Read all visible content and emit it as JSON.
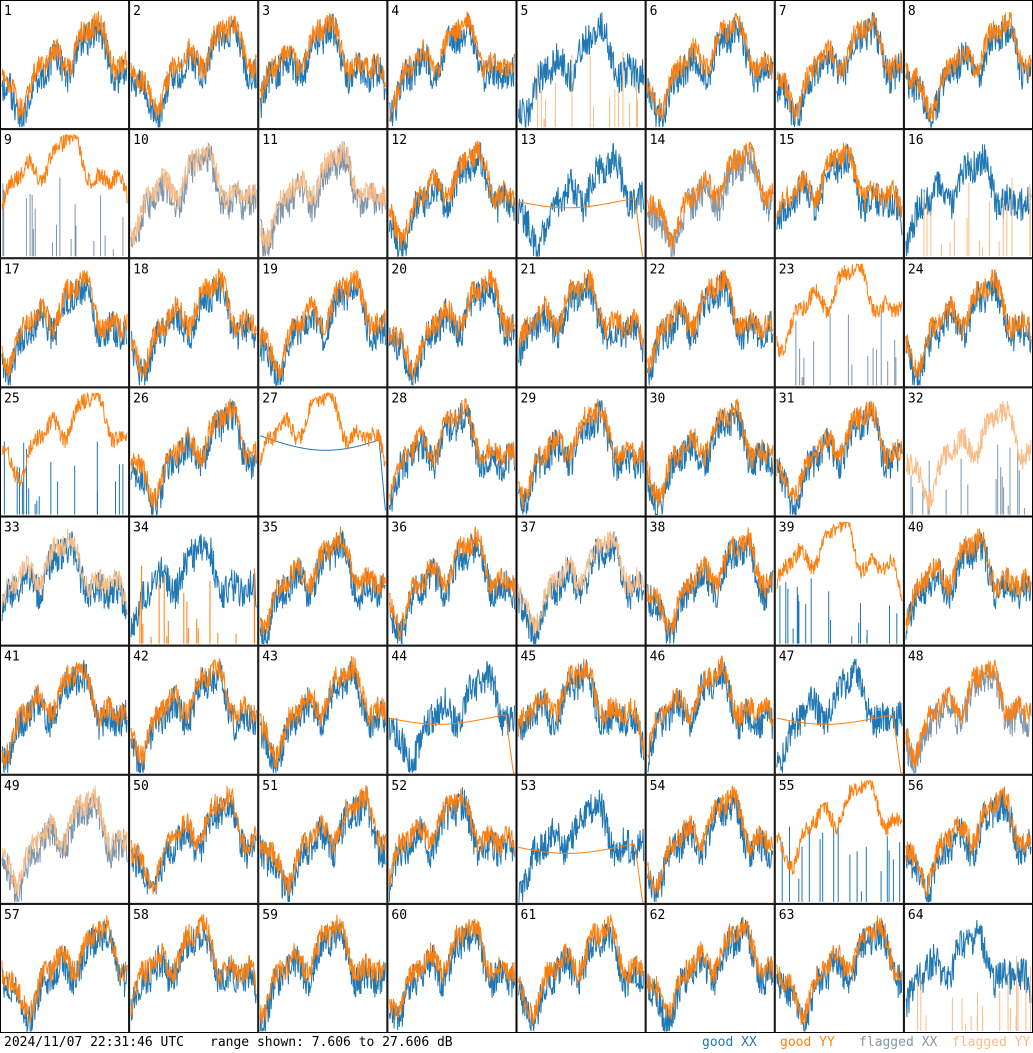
{
  "timestamp": "2024/11/07 22:31:46 UTC",
  "range_text": "range shown: 7.606 to 27.606 dB",
  "legend": {
    "good_xx": "good XX",
    "good_yy": "good YY",
    "flagged_xx": "flagged XX",
    "flagged_yy": "flagged YY"
  },
  "colors": {
    "good_xx": "#1f77b4",
    "good_yy": "#ff7f0e",
    "flagged_xx": "#7f97ad",
    "flagged_yy": "#f9bc86"
  },
  "chart_data": {
    "type": "line",
    "title": "",
    "ylim": [
      7.606,
      27.606
    ],
    "yunit": "dB",
    "grid": "8x8 small multiples",
    "panels": [
      {
        "label": "1",
        "xx": "good",
        "yy": "good",
        "yshape": "normal"
      },
      {
        "label": "2",
        "xx": "good",
        "yy": "good",
        "yshape": "normal"
      },
      {
        "label": "3",
        "xx": "good",
        "yy": "good",
        "yshape": "normal"
      },
      {
        "label": "4",
        "xx": "good",
        "yy": "good",
        "yshape": "normal"
      },
      {
        "label": "5",
        "xx": "good",
        "yy": "flagged",
        "yshape": "spikes"
      },
      {
        "label": "6",
        "xx": "good",
        "yy": "good",
        "yshape": "normal"
      },
      {
        "label": "7",
        "xx": "good",
        "yy": "good",
        "yshape": "normal"
      },
      {
        "label": "8",
        "xx": "good",
        "yy": "good",
        "yshape": "normal"
      },
      {
        "label": "9",
        "xx": "flagged",
        "yy": "good",
        "xshape": "spikes",
        "yshape": "high"
      },
      {
        "label": "10",
        "xx": "flagged",
        "yy": "flagged",
        "yshape": "normal"
      },
      {
        "label": "11",
        "xx": "flagged",
        "yy": "flagged",
        "yshape": "normal"
      },
      {
        "label": "12",
        "xx": "good",
        "yy": "good",
        "yshape": "normal"
      },
      {
        "label": "13",
        "xx": "good",
        "yy": "good",
        "yshape": "smooth"
      },
      {
        "label": "14",
        "xx": "flagged",
        "yy": "good",
        "yshape": "normal"
      },
      {
        "label": "15",
        "xx": "good",
        "yy": "good",
        "yshape": "normal"
      },
      {
        "label": "16",
        "xx": "good",
        "yy": "flagged",
        "yshape": "spikes"
      },
      {
        "label": "17",
        "xx": "good",
        "yy": "good",
        "yshape": "normal"
      },
      {
        "label": "18",
        "xx": "good",
        "yy": "good",
        "yshape": "normal"
      },
      {
        "label": "19",
        "xx": "good",
        "yy": "good",
        "yshape": "normal"
      },
      {
        "label": "20",
        "xx": "good",
        "yy": "good",
        "yshape": "normal"
      },
      {
        "label": "21",
        "xx": "good",
        "yy": "good",
        "yshape": "normal"
      },
      {
        "label": "22",
        "xx": "good",
        "yy": "good",
        "yshape": "normal"
      },
      {
        "label": "23",
        "xx": "flagged",
        "yy": "good",
        "xshape": "spikes",
        "yshape": "high"
      },
      {
        "label": "24",
        "xx": "good",
        "yy": "good",
        "yshape": "normal"
      },
      {
        "label": "25",
        "xx": "good",
        "yy": "good",
        "xshape": "spikes",
        "yshape": "high"
      },
      {
        "label": "26",
        "xx": "good",
        "yy": "good",
        "yshape": "normal"
      },
      {
        "label": "27",
        "xx": "good",
        "yy": "good",
        "xshape": "smooth",
        "yshape": "high"
      },
      {
        "label": "28",
        "xx": "good",
        "yy": "good",
        "yshape": "normal"
      },
      {
        "label": "29",
        "xx": "good",
        "yy": "good",
        "yshape": "normal"
      },
      {
        "label": "30",
        "xx": "good",
        "yy": "good",
        "yshape": "normal"
      },
      {
        "label": "31",
        "xx": "good",
        "yy": "good",
        "yshape": "normal"
      },
      {
        "label": "32",
        "xx": "flagged",
        "yy": "flagged",
        "xshape": "spikes",
        "yshape": "normal"
      },
      {
        "label": "33",
        "xx": "good",
        "yy": "flagged",
        "yshape": "normal"
      },
      {
        "label": "34",
        "xx": "good",
        "yy": "good",
        "xshape": "normal",
        "yshape": "spikes"
      },
      {
        "label": "35",
        "xx": "good",
        "yy": "good",
        "yshape": "normal"
      },
      {
        "label": "36",
        "xx": "good",
        "yy": "good",
        "yshape": "normal"
      },
      {
        "label": "37",
        "xx": "good",
        "yy": "flagged",
        "yshape": "normal"
      },
      {
        "label": "38",
        "xx": "good",
        "yy": "good",
        "yshape": "normal"
      },
      {
        "label": "39",
        "xx": "good",
        "yy": "good",
        "xshape": "spikes",
        "yshape": "high"
      },
      {
        "label": "40",
        "xx": "good",
        "yy": "good",
        "yshape": "normal"
      },
      {
        "label": "41",
        "xx": "good",
        "yy": "good",
        "yshape": "normal"
      },
      {
        "label": "42",
        "xx": "good",
        "yy": "good",
        "yshape": "normal"
      },
      {
        "label": "43",
        "xx": "good",
        "yy": "good",
        "yshape": "normal"
      },
      {
        "label": "44",
        "xx": "good",
        "yy": "good",
        "yshape": "smooth"
      },
      {
        "label": "45",
        "xx": "good",
        "yy": "good",
        "yshape": "normal"
      },
      {
        "label": "46",
        "xx": "good",
        "yy": "good",
        "yshape": "normal"
      },
      {
        "label": "47",
        "xx": "good",
        "yy": "good",
        "yshape": "smooth"
      },
      {
        "label": "48",
        "xx": "flagged",
        "yy": "good",
        "yshape": "normal"
      },
      {
        "label": "49",
        "xx": "flagged",
        "yy": "flagged",
        "yshape": "normal"
      },
      {
        "label": "50",
        "xx": "good",
        "yy": "good",
        "yshape": "normal"
      },
      {
        "label": "51",
        "xx": "good",
        "yy": "good",
        "yshape": "normal"
      },
      {
        "label": "52",
        "xx": "good",
        "yy": "good",
        "yshape": "normal"
      },
      {
        "label": "53",
        "xx": "good",
        "yy": "good",
        "yshape": "smooth"
      },
      {
        "label": "54",
        "xx": "good",
        "yy": "good",
        "yshape": "normal"
      },
      {
        "label": "55",
        "xx": "good",
        "yy": "good",
        "xshape": "spikes",
        "yshape": "high"
      },
      {
        "label": "56",
        "xx": "good",
        "yy": "good",
        "yshape": "normal"
      },
      {
        "label": "57",
        "xx": "good",
        "yy": "good",
        "yshape": "normal"
      },
      {
        "label": "58",
        "xx": "good",
        "yy": "good",
        "yshape": "normal"
      },
      {
        "label": "59",
        "xx": "good",
        "yy": "good",
        "yshape": "normal"
      },
      {
        "label": "60",
        "xx": "good",
        "yy": "good",
        "yshape": "normal"
      },
      {
        "label": "61",
        "xx": "good",
        "yy": "good",
        "yshape": "normal"
      },
      {
        "label": "62",
        "xx": "good",
        "yy": "good",
        "yshape": "normal"
      },
      {
        "label": "63",
        "xx": "good",
        "yy": "good",
        "yshape": "normal"
      },
      {
        "label": "64",
        "xx": "good",
        "yy": "flagged",
        "yshape": "spikes"
      }
    ]
  }
}
